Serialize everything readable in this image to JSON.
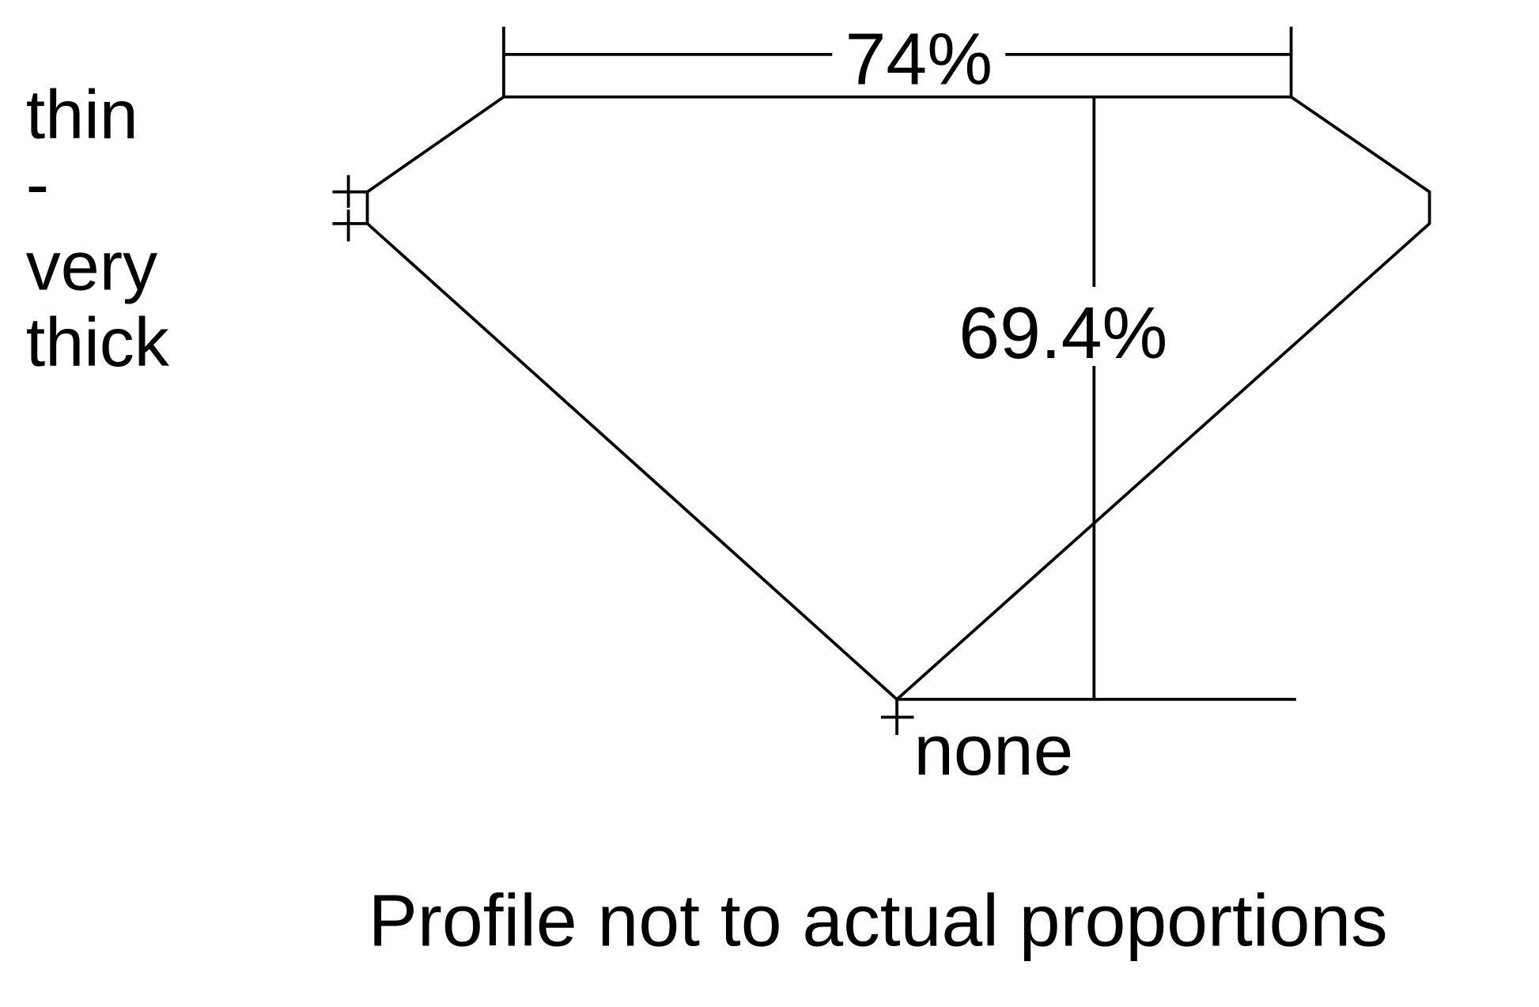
{
  "labels": {
    "width_pct": "74%",
    "depth_pct": "69.4%",
    "girdle_line1": "thin",
    "girdle_line2": "-",
    "girdle_line3": "very",
    "girdle_line4": "thick",
    "culet": "none",
    "note": "Profile not to actual proportions"
  },
  "colors": {
    "stroke": "#000000",
    "background": "#ffffff"
  }
}
